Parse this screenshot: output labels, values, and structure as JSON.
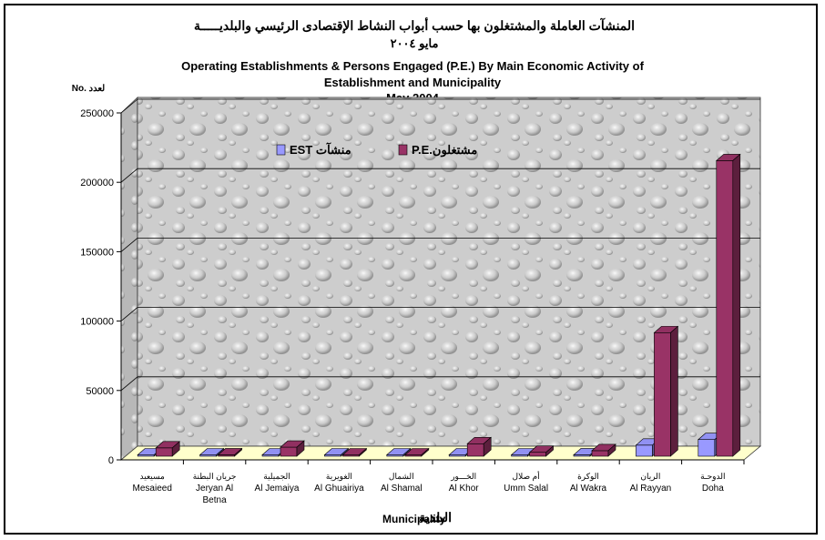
{
  "chart_data": {
    "type": "bar",
    "title_ar": "المنشآت العاملة والمشتغلون بها حسب أبواب النشاط الإقتصادى الرئيسي والبلديـــــة",
    "subtitle_ar": "مايو ٢٠٠٤",
    "title_en_line1": "Operating Establishments & Persons Engaged (P.E.) By  Main Economic Activity of",
    "title_en_line2": "Establishment and Municipality",
    "title_en_line3": "May 2004",
    "ylabel": "No. لعدد",
    "xlabel_en": "Municipality",
    "xlabel_ar": "البلدية",
    "ylim": [
      0,
      250000
    ],
    "yticks": [
      "0",
      "50000",
      "100000",
      "150000",
      "200000",
      "250000"
    ],
    "grid": true,
    "legend_placement": "top-center",
    "categories": [
      {
        "ar": "مسيعيد",
        "en1": "Mesaieed",
        "en2": ""
      },
      {
        "ar": "جريان البطنة",
        "en1": "Jeryan Al",
        "en2": "Betna"
      },
      {
        "ar": "الجميلية",
        "en1": "Al Jemaiya",
        "en2": ""
      },
      {
        "ar": "الغويرية",
        "en1": "Al Ghuairiya",
        "en2": ""
      },
      {
        "ar": "الشمال",
        "en1": "Al Shamal",
        "en2": ""
      },
      {
        "ar": "الخـــور",
        "en1": "Al Khor",
        "en2": ""
      },
      {
        "ar": "أم صلال",
        "en1": "Umm Salal",
        "en2": ""
      },
      {
        "ar": "الوكرة",
        "en1": "Al Wakra",
        "en2": ""
      },
      {
        "ar": "الريان",
        "en1": "Al Rayyan",
        "en2": ""
      },
      {
        "ar": "الدوحـة",
        "en1": "Doha",
        "en2": ""
      }
    ],
    "series": [
      {
        "name": "EST منشآت",
        "color": "#9999ff",
        "values": [
          400,
          300,
          600,
          100,
          200,
          900,
          900,
          1000,
          8000,
          12000
        ]
      },
      {
        "name": "P.E.مشتغلون",
        "color": "#993366",
        "values": [
          6000,
          1000,
          6500,
          700,
          700,
          9000,
          2800,
          4000,
          89000,
          213000
        ]
      }
    ]
  }
}
